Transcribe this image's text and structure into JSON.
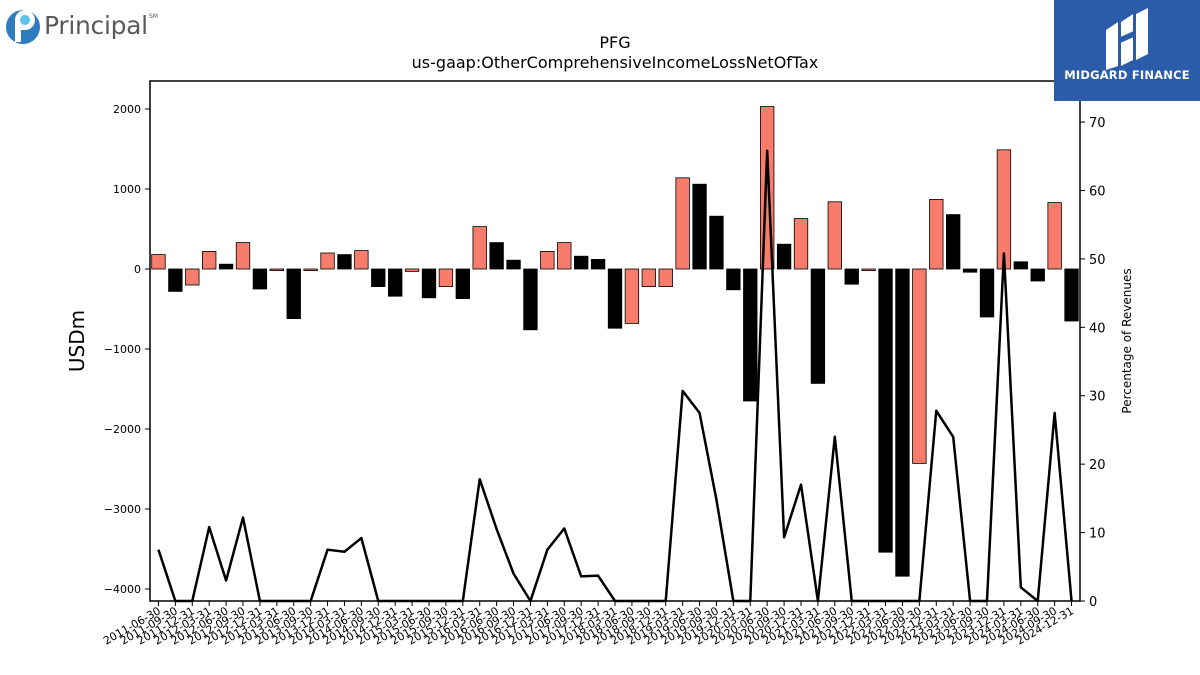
{
  "logos": {
    "left_name": "Principal",
    "left_mark": "SM",
    "right_name": "MIDGARD FINANCE"
  },
  "colors": {
    "positive_bar": "#f87c6c",
    "negative_bar": "#000000",
    "line": "#000000",
    "brand_blue": "#2a5caa"
  },
  "chart_data": {
    "type": "bar",
    "title": "PFG",
    "subtitle": "us-gaap:OtherComprehensiveIncomeLossNetOfTax",
    "ylabel": "USDm",
    "y2label": "Percentage of Revenues",
    "ylim": [
      -4150,
      2350
    ],
    "y2lim": [
      0,
      76
    ],
    "yticks": [
      -4000,
      -3000,
      -2000,
      -1000,
      0,
      1000,
      2000
    ],
    "y2ticks": [
      0,
      10,
      20,
      30,
      40,
      50,
      60,
      70
    ],
    "grid": false,
    "categories": [
      "2011-06-30",
      "2011-09-30",
      "2011-12-31",
      "2012-03-31",
      "2012-06-30",
      "2012-09-30",
      "2012-12-31",
      "2013-03-31",
      "2013-06-30",
      "2013-09-30",
      "2013-12-31",
      "2014-03-31",
      "2014-06-30",
      "2014-09-30",
      "2014-12-31",
      "2015-03-31",
      "2015-06-30",
      "2015-09-30",
      "2015-12-31",
      "2016-03-31",
      "2016-06-30",
      "2016-09-30",
      "2016-12-31",
      "2017-03-31",
      "2017-06-30",
      "2017-09-30",
      "2017-12-31",
      "2018-03-31",
      "2018-06-30",
      "2018-09-30",
      "2018-12-31",
      "2019-03-31",
      "2019-06-30",
      "2019-09-30",
      "2019-12-31",
      "2020-03-31",
      "2020-06-30",
      "2020-09-30",
      "2020-12-31",
      "2021-03-31",
      "2021-06-30",
      "2021-09-30",
      "2021-12-31",
      "2022-03-31",
      "2022-06-30",
      "2022-09-30",
      "2022-12-31",
      "2023-03-31",
      "2023-06-30",
      "2023-09-30",
      "2023-12-31",
      "2024-03-31",
      "2024-06-30",
      "2024-09-30",
      "2024-12-31"
    ],
    "series": [
      {
        "type": "bar",
        "values": [
          180,
          -280,
          -200,
          220,
          60,
          330,
          -250,
          -20,
          -620,
          -20,
          200,
          180,
          230,
          -220,
          -340,
          -30,
          -360,
          -220,
          -370,
          530,
          330,
          110,
          -760,
          220,
          330,
          160,
          120,
          -740,
          -680,
          -220,
          -220,
          1140,
          1060,
          660,
          -260,
          -1650,
          2030,
          310,
          630,
          -1430,
          840,
          -190,
          -20,
          -3540,
          -3840,
          -2430,
          870,
          680,
          -40,
          -600,
          1490,
          90,
          -150,
          830,
          -650
        ]
      },
      {
        "type": "line",
        "axis": "right",
        "values": [
          7.5,
          0,
          0,
          10.8,
          3,
          12.2,
          0,
          0,
          0,
          0,
          7.5,
          7.2,
          9.2,
          0,
          0,
          0,
          0,
          0,
          0,
          17.8,
          10.5,
          4,
          0,
          7.5,
          10.6,
          3.6,
          3.7,
          0,
          0,
          0,
          0,
          30.7,
          27.5,
          14.8,
          0,
          0,
          65.8,
          9.3,
          17,
          0,
          24,
          0,
          0,
          0,
          0,
          0,
          27.8,
          24,
          0,
          0,
          50.8,
          2,
          0,
          27.5,
          0
        ]
      }
    ]
  }
}
